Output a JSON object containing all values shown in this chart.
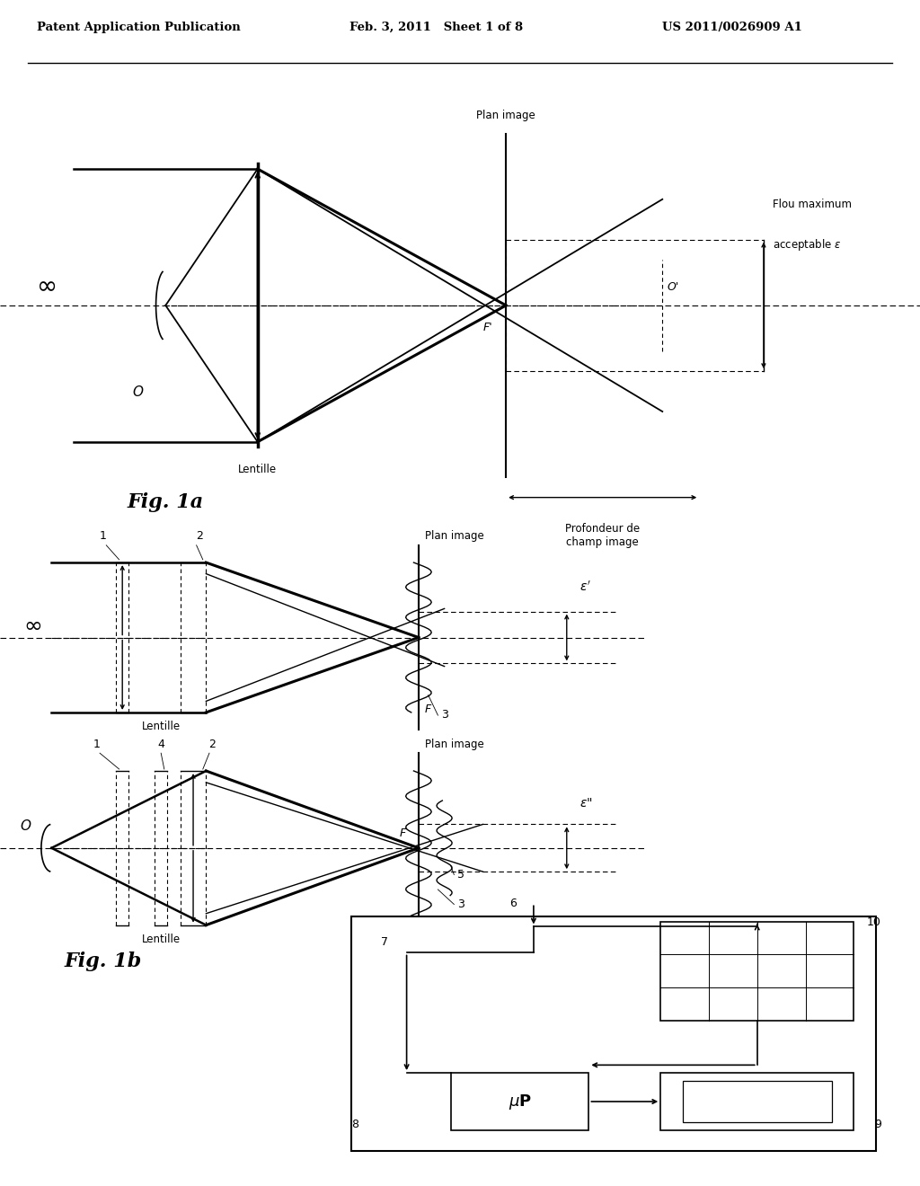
{
  "bg_color": "#ffffff",
  "header_left": "Patent Application Publication",
  "header_mid": "Feb. 3, 2011   Sheet 1 of 8",
  "header_right": "US 2011/0026909 A1",
  "fig1a_label": "Fig. 1a",
  "fig1b_label": "Fig. 1b"
}
